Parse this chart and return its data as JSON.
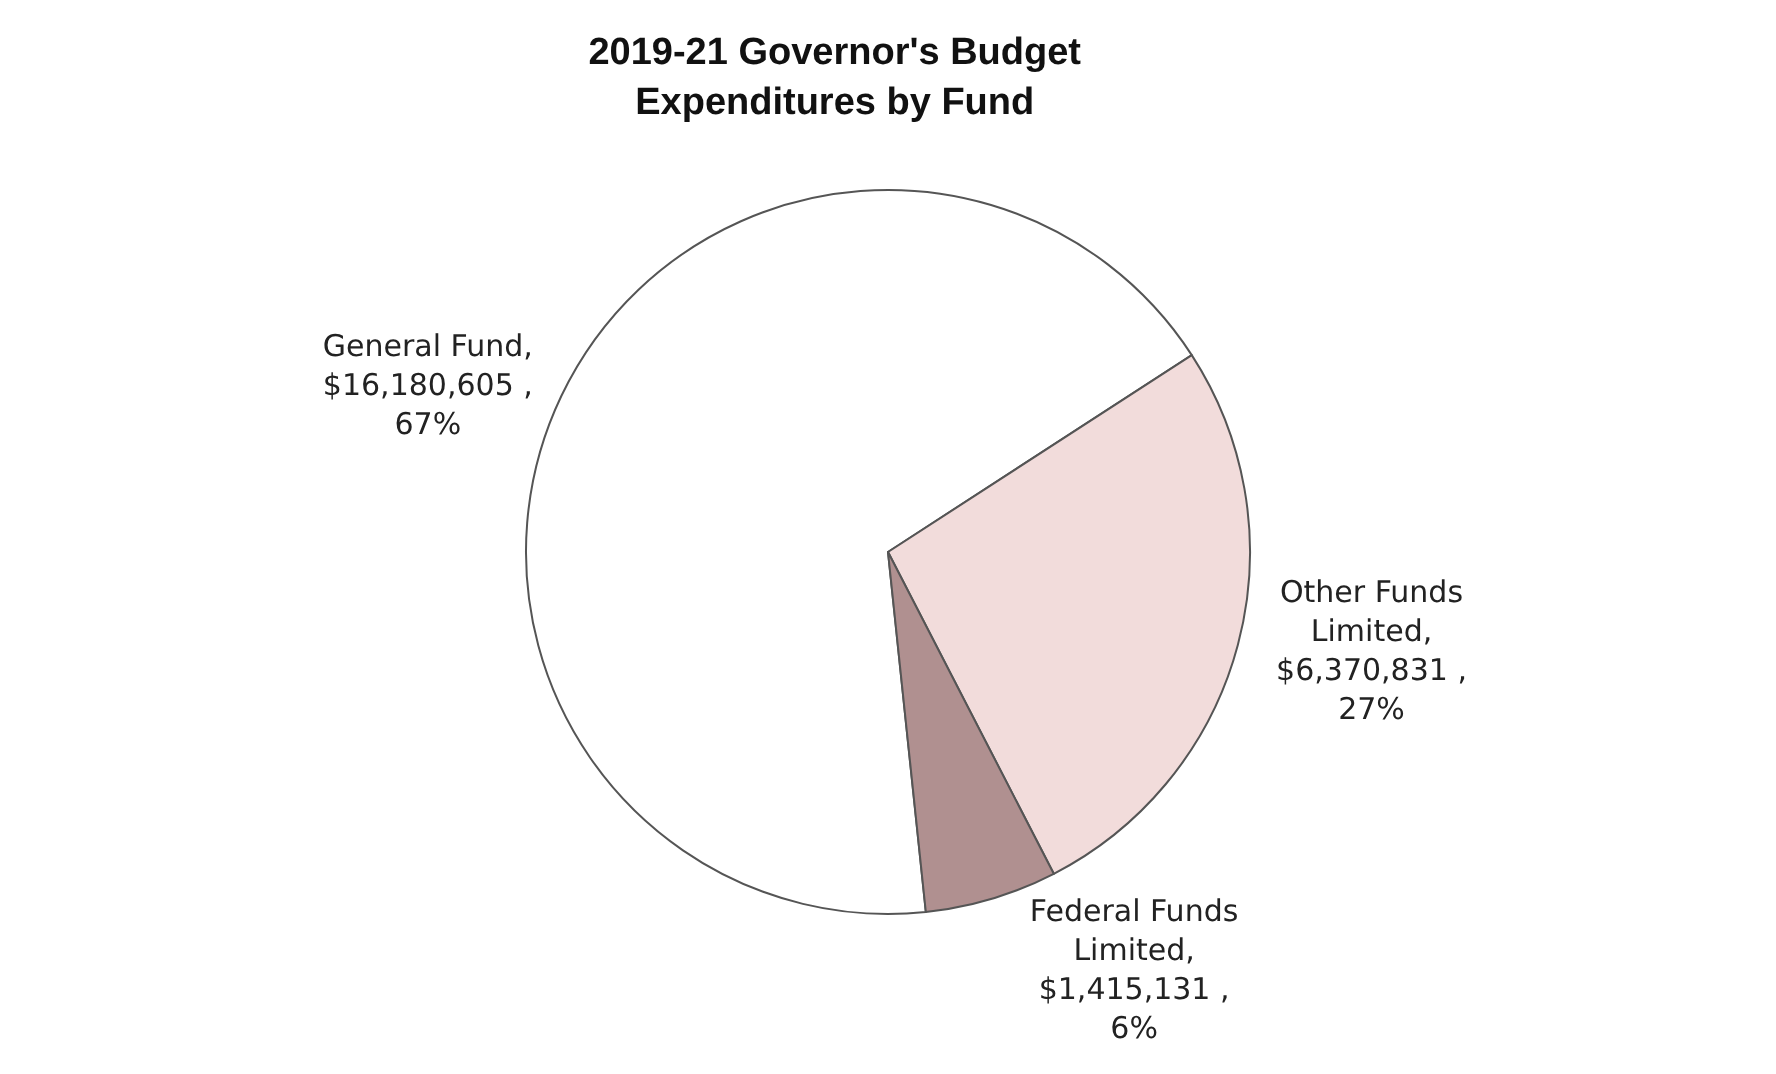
{
  "chart_data": {
    "type": "pie",
    "title": "2019-21 Governor's Budget Expenditures by Fund",
    "categories": [
      "General Fund",
      "Other Funds Limited",
      "Federal Funds Limited"
    ],
    "values": [
      16180605,
      6370831,
      1415131
    ],
    "value_labels": [
      ", $16,180,605 , 67%",
      ", $6,370,831 , 27%",
      ", $1,415,131 , 6%"
    ],
    "colors": [
      "#ffffff",
      "#f2dcdb",
      "#b09090"
    ],
    "legend": false
  }
}
